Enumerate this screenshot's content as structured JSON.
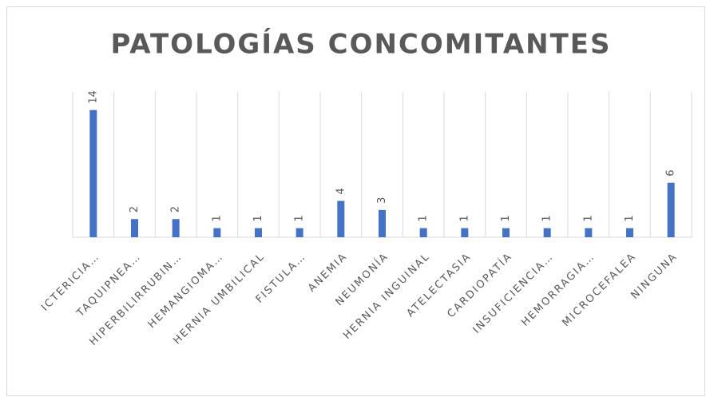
{
  "chart_data": {
    "type": "bar",
    "title": "PATOLOGÍAS CONCOMITANTES",
    "categories": [
      "ICTERICIA…",
      "TAQUIPNEA…",
      "HIPERBILIRRUBIN…",
      "HEMANGIOMA…",
      "HERNIA UMBILICAL",
      "FISTULA…",
      "ANEMIA",
      "NEUMONÍA",
      "HERNIA INGUINAL",
      "ATELECTASIA",
      "CARDIOPATÍA",
      "INSUFICIENCIA…",
      "HEMORRAGIA…",
      "MICROCEFALEA",
      "NINGUNA"
    ],
    "values": [
      14,
      2,
      2,
      1,
      1,
      1,
      4,
      3,
      1,
      1,
      1,
      1,
      1,
      1,
      6
    ],
    "color": "#4472c4",
    "ylim": [
      0,
      16
    ]
  }
}
